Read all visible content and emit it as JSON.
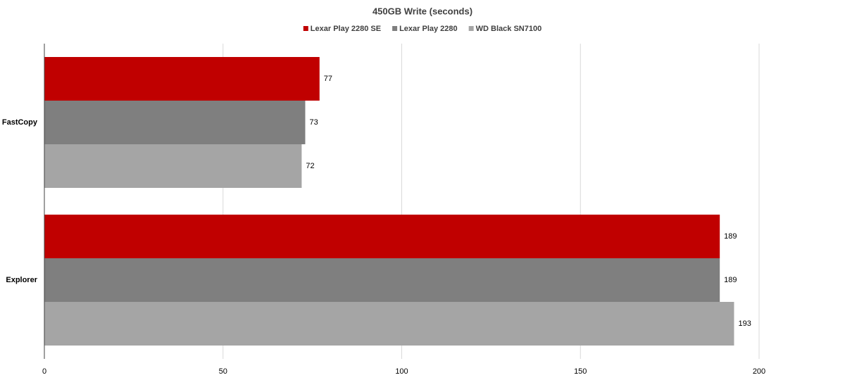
{
  "chart_data": {
    "type": "hbar",
    "title": "450GB Write (seconds)",
    "categories": [
      "FastCopy",
      "Explorer"
    ],
    "series": [
      {
        "name": "Lexar Play 2280 SE",
        "color": "#c00000",
        "values": [
          77,
          189
        ]
      },
      {
        "name": "Lexar Play 2280",
        "color": "#7f7f7f",
        "values": [
          73,
          189
        ]
      },
      {
        "name": "WD Black SN7100",
        "color": "#a5a5a5",
        "values": [
          72,
          193
        ]
      }
    ],
    "xlim": [
      0,
      200
    ],
    "xticks": [
      0,
      50,
      100,
      150,
      200
    ],
    "grid": true,
    "legend": "top"
  }
}
